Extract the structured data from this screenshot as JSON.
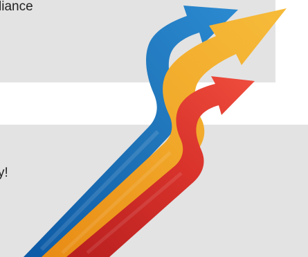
{
  "panels": {
    "top_text": "liance",
    "bottom_text": "y!"
  },
  "graphic": {
    "icon": "growth-arrows-icon",
    "colors": {
      "panel": "#e3e3e3",
      "blue": "#1f73b7",
      "yellow": "#eea423",
      "red": "#d8322b"
    }
  }
}
